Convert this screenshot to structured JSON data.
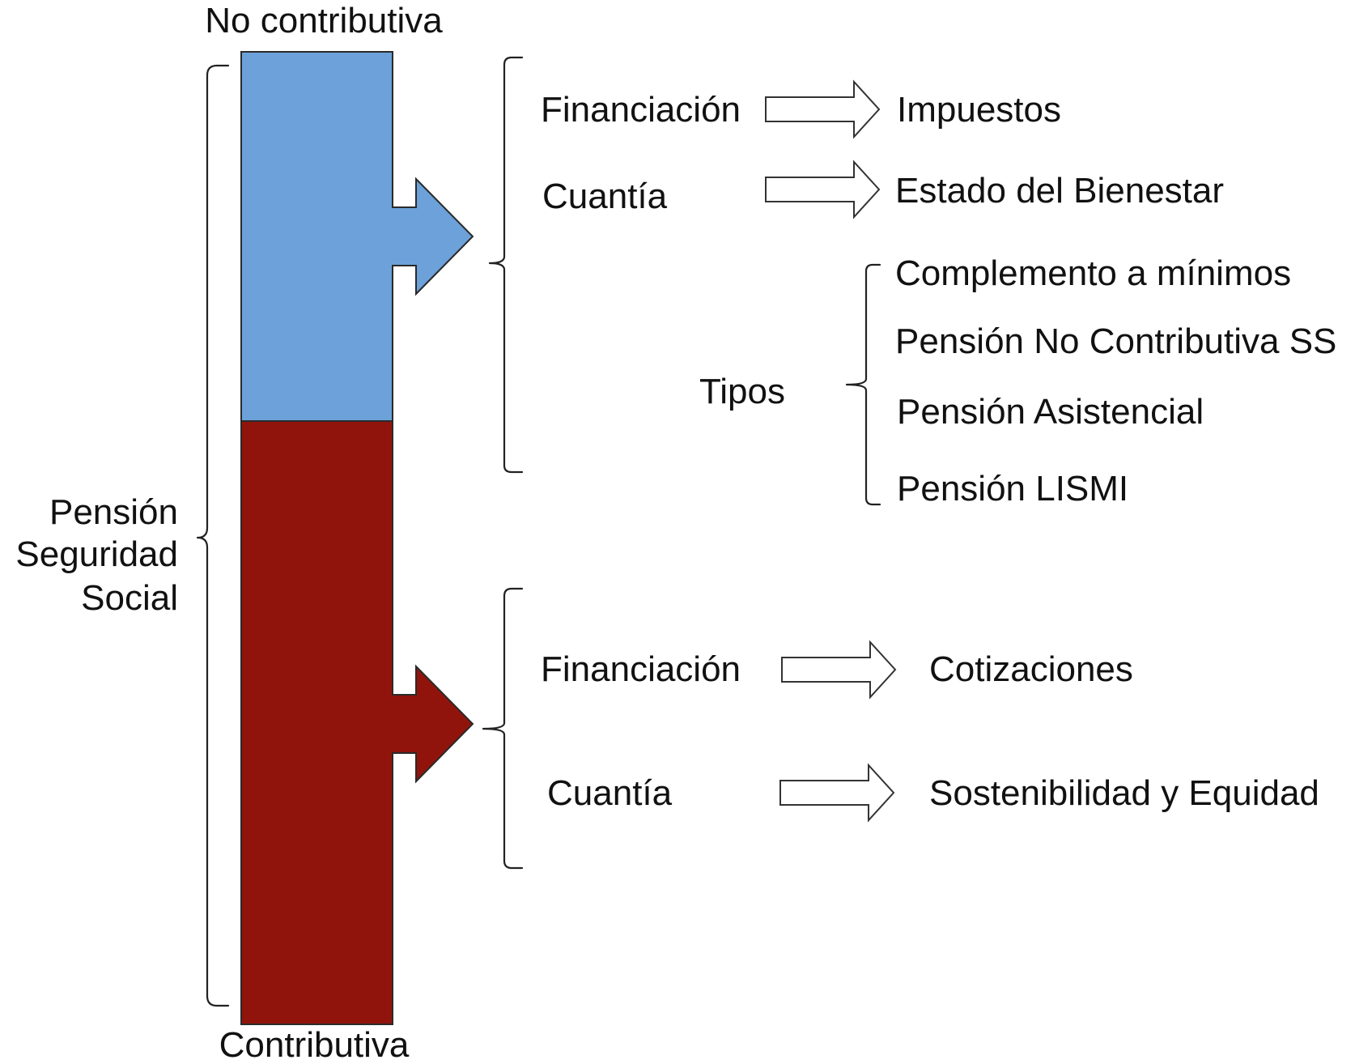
{
  "colors": {
    "no_contributiva": "#6CA1D9",
    "contributiva": "#91140C"
  },
  "bar": {
    "top_label": "No contributiva",
    "bottom_label": "Contributiva"
  },
  "root": {
    "line1": "Pensión",
    "line2": "Seguridad",
    "line3": "Social"
  },
  "no_contributiva": {
    "financiacion": "Financiación",
    "financiacion_result": "Impuestos",
    "cuantia": "Cuantía",
    "cuantia_result": "Estado del Bienestar",
    "tipos": "Tipos",
    "tipos_items": [
      "Complemento a mínimos",
      "Pensión No Contributiva SS",
      "Pensión Asistencial",
      "Pensión LISMI"
    ]
  },
  "contributiva": {
    "financiacion": "Financiación",
    "financiacion_result": "Cotizaciones",
    "cuantia": "Cuantía",
    "cuantia_result": "Sostenibilidad y Equidad"
  },
  "icons": {
    "outer_brace": "left-curly-brace",
    "branch_arrow": "right-block-arrow",
    "result_arrow": "hollow-right-arrow"
  }
}
